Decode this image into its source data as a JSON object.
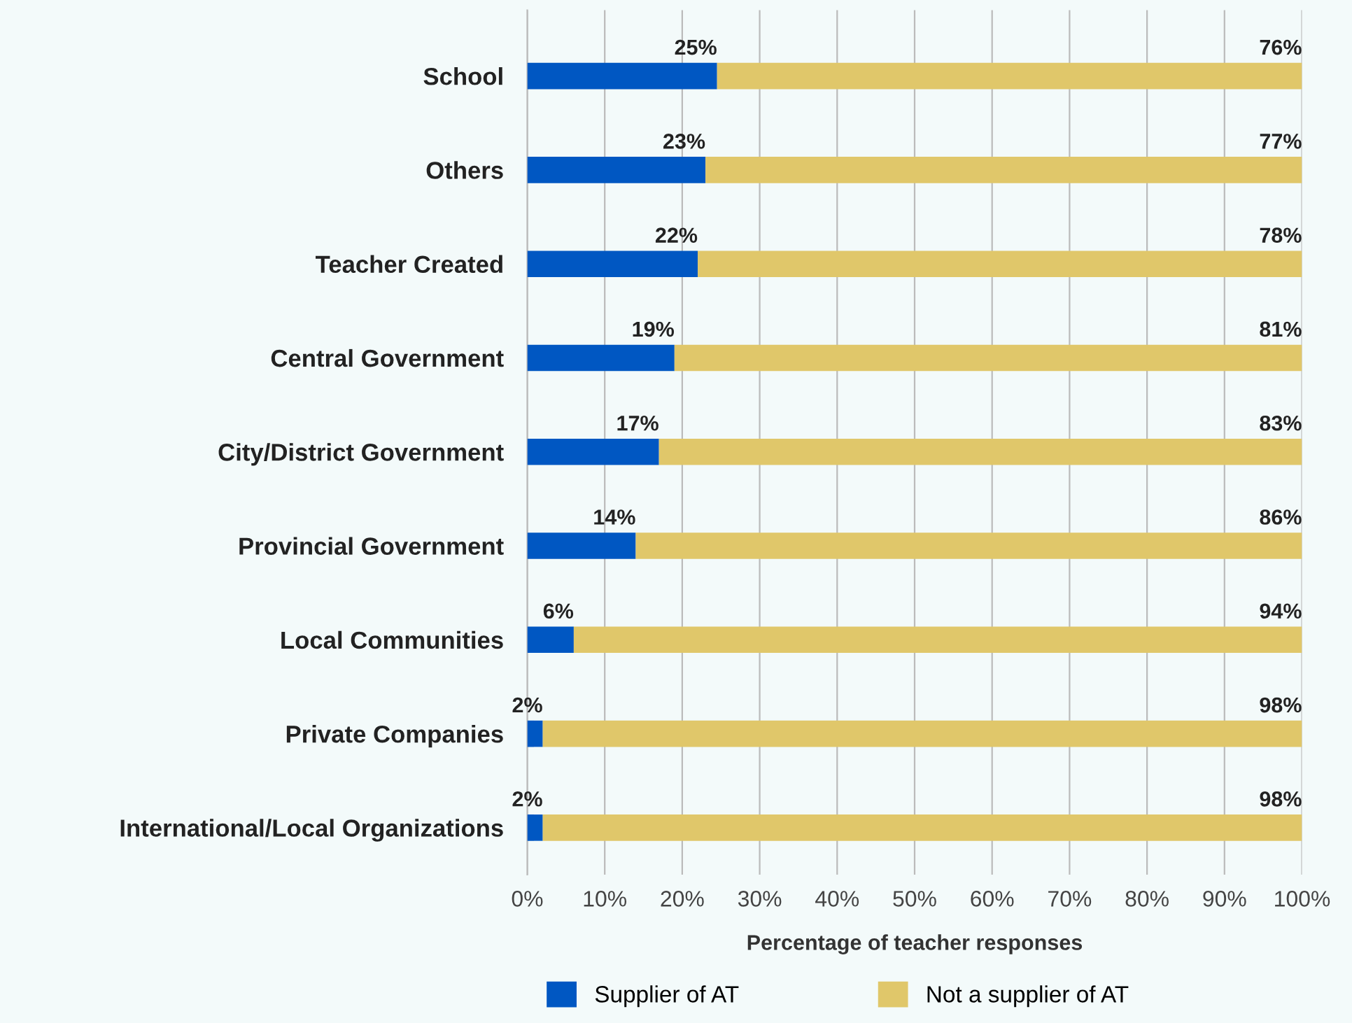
{
  "chart_data": {
    "type": "bar",
    "orientation": "horizontal",
    "stacked": true,
    "categories": [
      "School",
      "Others",
      "Teacher Created",
      "Central Government",
      "City/District Government",
      "Provincial Government",
      "Local Communities",
      "Private Companies",
      "International/Local Organizations"
    ],
    "series": [
      {
        "name": "Supplier of AT",
        "color": "#0057c2",
        "values": [
          24.5,
          23,
          22,
          19,
          17,
          14,
          6,
          2,
          2
        ],
        "value_labels": [
          "25%",
          "23%",
          "22%",
          "19%",
          "17%",
          "14%",
          "6%",
          "2%",
          "2%"
        ]
      },
      {
        "name": "Not a supplier of AT",
        "color": "#e0c76a",
        "values": [
          75.5,
          77,
          78,
          81,
          83,
          86,
          94,
          98,
          98
        ],
        "value_labels": [
          "76%",
          "77%",
          "78%",
          "81%",
          "83%",
          "86%",
          "94%",
          "98%",
          "98%"
        ]
      }
    ],
    "xlabel": "Percentage of teacher responses",
    "xlim": [
      0,
      100
    ],
    "xticks": [
      {
        "value": 0,
        "label": "0%"
      },
      {
        "value": 10,
        "label": "10%"
      },
      {
        "value": 20,
        "label": "20%"
      },
      {
        "value": 30,
        "label": "30%"
      },
      {
        "value": 40,
        "label": "40%"
      },
      {
        "value": 50,
        "label": "50%"
      },
      {
        "value": 60,
        "label": "60%"
      },
      {
        "value": 70,
        "label": "70%"
      },
      {
        "value": 80,
        "label": "80%"
      },
      {
        "value": 90,
        "label": "90%"
      },
      {
        "value": 100,
        "label": "100%"
      }
    ],
    "grid": "x",
    "legend": "bottom"
  }
}
